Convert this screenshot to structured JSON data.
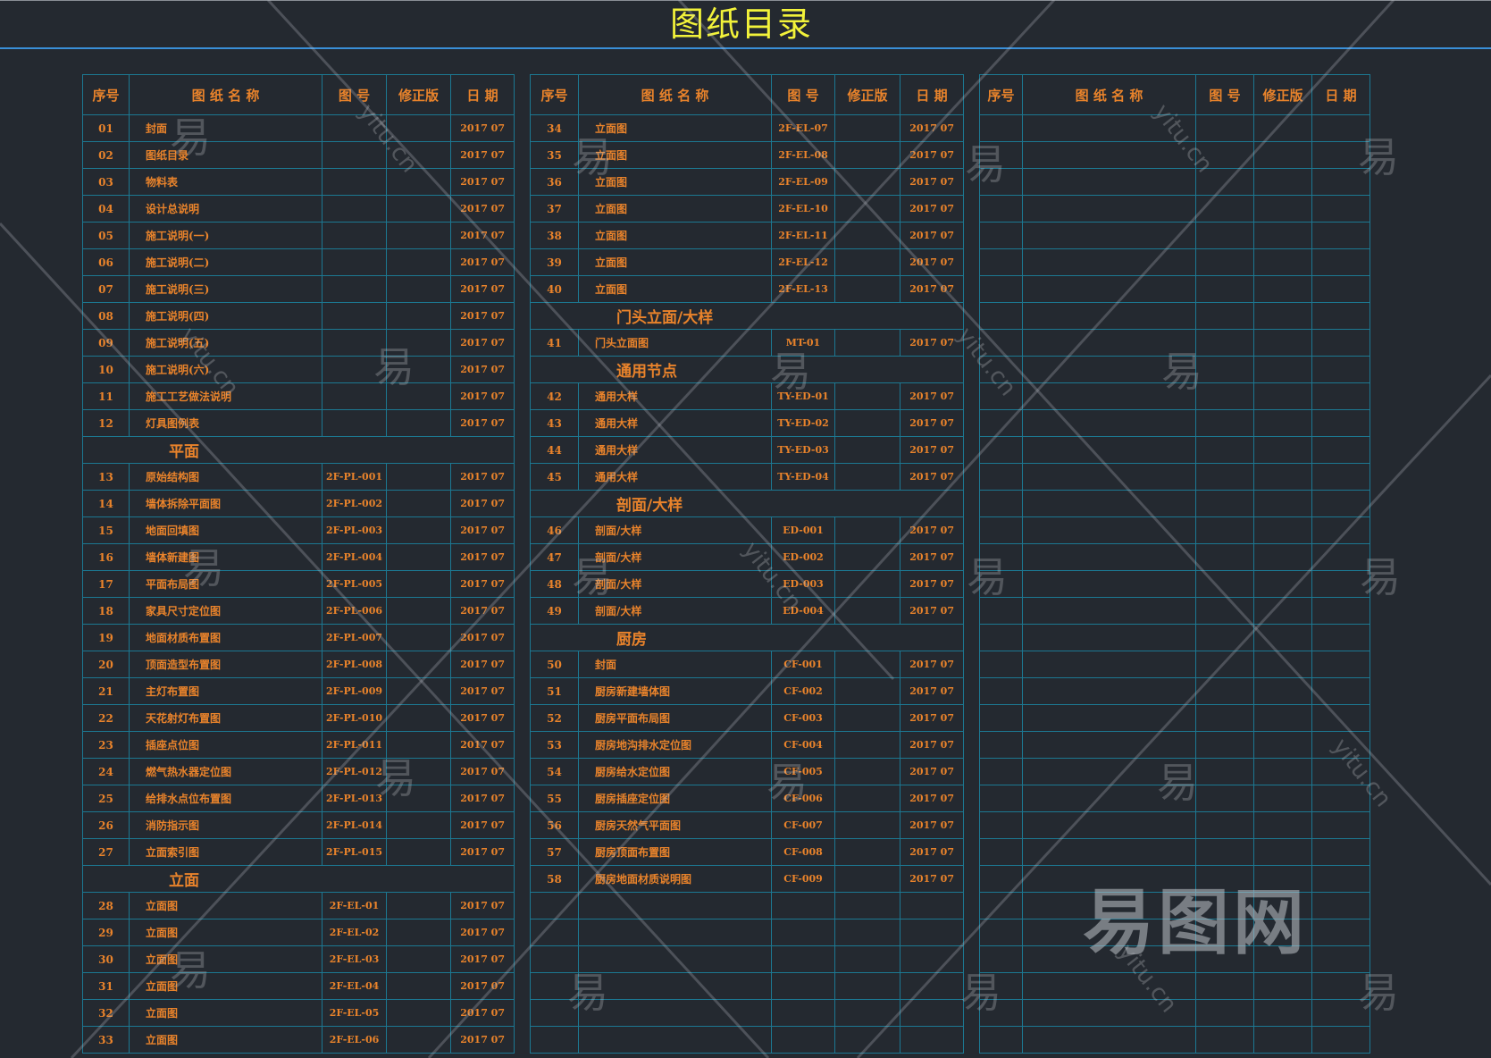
{
  "title": "图纸目录",
  "colors": {
    "background": "#242930",
    "grid": "#1c7892",
    "text": "#e9832b",
    "title": "#f2f23a",
    "rule": "#3a8fd8"
  },
  "headers": {
    "seq": "序号",
    "name": "图 纸 名 称",
    "num": "图 号",
    "rev": "修正版",
    "date": "日 期"
  },
  "tables": [
    {
      "rows": [
        {
          "seq": "01",
          "name": "封面",
          "num": "",
          "rev": "",
          "date": "2017 07"
        },
        {
          "seq": "02",
          "name": "图纸目录",
          "num": "",
          "rev": "",
          "date": "2017 07"
        },
        {
          "seq": "03",
          "name": "物料表",
          "num": "",
          "rev": "",
          "date": "2017 07"
        },
        {
          "seq": "04",
          "name": "设计总说明",
          "num": "",
          "rev": "",
          "date": "2017 07"
        },
        {
          "seq": "05",
          "name": "施工说明(一)",
          "num": "",
          "rev": "",
          "date": "2017 07"
        },
        {
          "seq": "06",
          "name": "施工说明(二)",
          "num": "",
          "rev": "",
          "date": "2017 07"
        },
        {
          "seq": "07",
          "name": "施工说明(三)",
          "num": "",
          "rev": "",
          "date": "2017 07"
        },
        {
          "seq": "08",
          "name": "施工说明(四)",
          "num": "",
          "rev": "",
          "date": "2017 07"
        },
        {
          "seq": "09",
          "name": "施工说明(五)",
          "num": "",
          "rev": "",
          "date": "2017 07"
        },
        {
          "seq": "10",
          "name": "施工说明(六)",
          "num": "",
          "rev": "",
          "date": "2017 07"
        },
        {
          "seq": "11",
          "name": "施工工艺做法说明",
          "num": "",
          "rev": "",
          "date": "2017 07"
        },
        {
          "seq": "12",
          "name": "灯具图例表",
          "num": "",
          "rev": "",
          "date": "2017 07"
        },
        {
          "section": "平面"
        },
        {
          "seq": "13",
          "name": "原始结构图",
          "num": "2F-PL-001",
          "rev": "",
          "date": "2017 07"
        },
        {
          "seq": "14",
          "name": "墙体拆除平面图",
          "num": "2F-PL-002",
          "rev": "",
          "date": "2017 07"
        },
        {
          "seq": "15",
          "name": "地面回填图",
          "num": "2F-PL-003",
          "rev": "",
          "date": "2017 07"
        },
        {
          "seq": "16",
          "name": "墙体新建图",
          "num": "2F-PL-004",
          "rev": "",
          "date": "2017 07"
        },
        {
          "seq": "17",
          "name": "平面布局图",
          "num": "2F-PL-005",
          "rev": "",
          "date": "2017 07"
        },
        {
          "seq": "18",
          "name": "家具尺寸定位图",
          "num": "2F-PL-006",
          "rev": "",
          "date": "2017 07"
        },
        {
          "seq": "19",
          "name": "地面材质布置图",
          "num": "2F-PL-007",
          "rev": "",
          "date": "2017 07"
        },
        {
          "seq": "20",
          "name": "顶面造型布置图",
          "num": "2F-PL-008",
          "rev": "",
          "date": "2017 07"
        },
        {
          "seq": "21",
          "name": "主灯布置图",
          "num": "2F-PL-009",
          "rev": "",
          "date": "2017 07"
        },
        {
          "seq": "22",
          "name": "天花射灯布置图",
          "num": "2F-PL-010",
          "rev": "",
          "date": "2017 07"
        },
        {
          "seq": "23",
          "name": "插座点位图",
          "num": "2F-PL-011",
          "rev": "",
          "date": "2017 07"
        },
        {
          "seq": "24",
          "name": "燃气热水器定位图",
          "num": "2F-PL-012",
          "rev": "",
          "date": "2017 07"
        },
        {
          "seq": "25",
          "name": "给排水点位布置图",
          "num": "2F-PL-013",
          "rev": "",
          "date": "2017 07"
        },
        {
          "seq": "26",
          "name": "消防指示图",
          "num": "2F-PL-014",
          "rev": "",
          "date": "2017 07"
        },
        {
          "seq": "27",
          "name": "立面索引图",
          "num": "2F-PL-015",
          "rev": "",
          "date": "2017 07"
        },
        {
          "section": "立面"
        },
        {
          "seq": "28",
          "name": "立面图",
          "num": "2F-EL-01",
          "rev": "",
          "date": "2017 07"
        },
        {
          "seq": "29",
          "name": "立面图",
          "num": "2F-EL-02",
          "rev": "",
          "date": "2017 07"
        },
        {
          "seq": "30",
          "name": "立面图",
          "num": "2F-EL-03",
          "rev": "",
          "date": "2017 07"
        },
        {
          "seq": "31",
          "name": "立面图",
          "num": "2F-EL-04",
          "rev": "",
          "date": "2017 07"
        },
        {
          "seq": "32",
          "name": "立面图",
          "num": "2F-EL-05",
          "rev": "",
          "date": "2017 07"
        },
        {
          "seq": "33",
          "name": "立面图",
          "num": "2F-EL-06",
          "rev": "",
          "date": "2017 07"
        }
      ]
    },
    {
      "rows": [
        {
          "seq": "34",
          "name": "立面图",
          "num": "2F-EL-07",
          "rev": "",
          "date": "2017 07"
        },
        {
          "seq": "35",
          "name": "立面图",
          "num": "2F-EL-08",
          "rev": "",
          "date": "2017 07"
        },
        {
          "seq": "36",
          "name": "立面图",
          "num": "2F-EL-09",
          "rev": "",
          "date": "2017 07"
        },
        {
          "seq": "37",
          "name": "立面图",
          "num": "2F-EL-10",
          "rev": "",
          "date": "2017 07"
        },
        {
          "seq": "38",
          "name": "立面图",
          "num": "2F-EL-11",
          "rev": "",
          "date": "2017 07"
        },
        {
          "seq": "39",
          "name": "立面图",
          "num": "2F-EL-12",
          "rev": "",
          "date": "2017 07"
        },
        {
          "seq": "40",
          "name": "立面图",
          "num": "2F-EL-13",
          "rev": "",
          "date": "2017 07"
        },
        {
          "section": "门头立面/大样"
        },
        {
          "seq": "41",
          "name": "门头立面图",
          "num": "MT-01",
          "rev": "",
          "date": "2017 07"
        },
        {
          "section": "通用节点"
        },
        {
          "seq": "42",
          "name": "通用大样",
          "num": "TY-ED-01",
          "rev": "",
          "date": "2017 07"
        },
        {
          "seq": "43",
          "name": "通用大样",
          "num": "TY-ED-02",
          "rev": "",
          "date": "2017 07"
        },
        {
          "seq": "44",
          "name": "通用大样",
          "num": "TY-ED-03",
          "rev": "",
          "date": "2017 07"
        },
        {
          "seq": "45",
          "name": "通用大样",
          "num": "TY-ED-04",
          "rev": "",
          "date": "2017 07"
        },
        {
          "section": "剖面/大样"
        },
        {
          "seq": "46",
          "name": "剖面/大样",
          "num": "ED-001",
          "rev": "",
          "date": "2017 07"
        },
        {
          "seq": "47",
          "name": "剖面/大样",
          "num": "ED-002",
          "rev": "",
          "date": "2017 07"
        },
        {
          "seq": "48",
          "name": "剖面/大样",
          "num": "ED-003",
          "rev": "",
          "date": "2017 07"
        },
        {
          "seq": "49",
          "name": "剖面/大样",
          "num": "ED-004",
          "rev": "",
          "date": "2017 07"
        },
        {
          "section": "厨房"
        },
        {
          "seq": "50",
          "name": "封面",
          "num": "CF-001",
          "rev": "",
          "date": "2017 07"
        },
        {
          "seq": "51",
          "name": "厨房新建墙体图",
          "num": "CF-002",
          "rev": "",
          "date": "2017 07"
        },
        {
          "seq": "52",
          "name": "厨房平面布局图",
          "num": "CF-003",
          "rev": "",
          "date": "2017 07"
        },
        {
          "seq": "53",
          "name": "厨房地沟排水定位图",
          "num": "CF-004",
          "rev": "",
          "date": "2017 07"
        },
        {
          "seq": "54",
          "name": "厨房给水定位图",
          "num": "CF-005",
          "rev": "",
          "date": "2017 07"
        },
        {
          "seq": "55",
          "name": "厨房插座定位图",
          "num": "CF-006",
          "rev": "",
          "date": "2017 07"
        },
        {
          "seq": "56",
          "name": "厨房天然气平面图",
          "num": "CF-007",
          "rev": "",
          "date": "2017 07"
        },
        {
          "seq": "57",
          "name": "厨房顶面布置图",
          "num": "CF-008",
          "rev": "",
          "date": "2017 07"
        },
        {
          "seq": "58",
          "name": "厨房地面材质说明图",
          "num": "CF-009",
          "rev": "",
          "date": "2017 07"
        }
      ]
    },
    {
      "rows": []
    }
  ],
  "watermark": {
    "glyph": "易",
    "url": "yitu.cn",
    "logo": "易图网"
  }
}
